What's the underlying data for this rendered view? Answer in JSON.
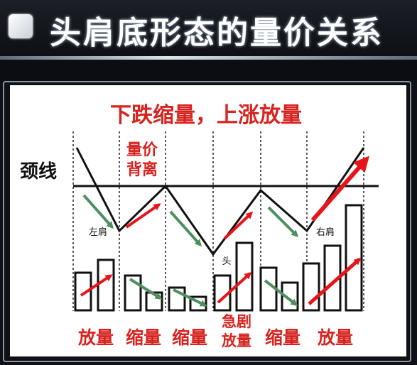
{
  "title": "头肩底形态的量价关系",
  "subtitle": "下跌缩量，上涨放量",
  "neckline_label": "颈线",
  "divergence_label": [
    "量价",
    "背离"
  ],
  "left_shoulder_label": "左肩",
  "head_label": "头",
  "right_shoulder_label": "右肩",
  "bottom_labels": [
    "放量",
    "缩量",
    "缩量",
    "急剧",
    "放量",
    "缩量",
    "放量"
  ],
  "volume_data": {
    "type": "bar",
    "segments": [
      "放量",
      "缩量",
      "缩量",
      "急剧放量",
      "缩量",
      "放量"
    ],
    "pairs": [
      [
        0.55,
        0.75
      ],
      [
        0.52,
        0.28
      ],
      [
        0.35,
        0.2
      ],
      [
        0.52,
        0.98
      ],
      [
        0.63,
        0.4
      ],
      [
        0.68,
        0.93,
        1.5
      ]
    ]
  },
  "colors": {
    "title_red": "#d8231f",
    "arrow_red": "#e8141b",
    "arrow_green": "#4f8f5f",
    "line": "#111111"
  }
}
